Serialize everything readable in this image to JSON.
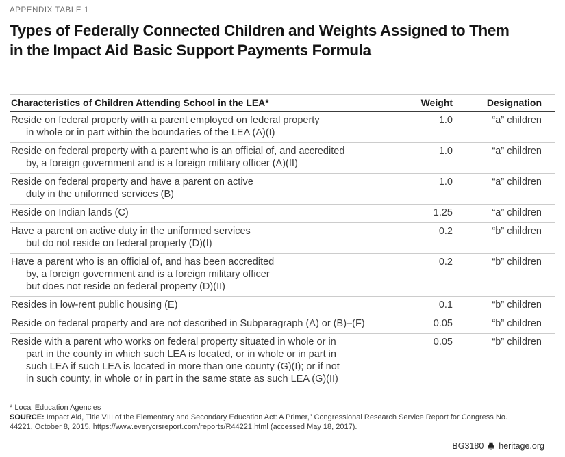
{
  "page": {
    "kicker": "APPENDIX TABLE 1",
    "title_lines": [
      "Types of Federally Connected Children and Weights Assigned to Them",
      "in the Impact Aid Basic Support Payments Formula"
    ]
  },
  "colors": {
    "header_rule_dark": "#3c3c3c",
    "row_rule_light": "#cccccc",
    "body_text": "#3c3c3c",
    "kicker_gray": "#6f6f6f",
    "title_black": "#161616"
  },
  "table": {
    "headers": [
      "Characteristics of Children Attending School in the LEA*",
      "Weight",
      "Designation"
    ],
    "rows": [
      {
        "lines": [
          "Reside on federal property with a parent employed on federal property",
          "in whole or in part within the boundaries of the LEA (A)(I)"
        ],
        "weight": "1.0",
        "designation": "“a” children"
      },
      {
        "lines": [
          "Reside on federal property with a parent who is an official of, and accredited",
          "by, a foreign government and is a foreign military officer (A)(II)"
        ],
        "weight": "1.0",
        "designation": "“a” children"
      },
      {
        "lines": [
          "Reside on federal property and have a parent on active",
          "duty in the uniformed services (B)"
        ],
        "weight": "1.0",
        "designation": "“a” children"
      },
      {
        "lines": [
          "Reside on Indian lands (C)"
        ],
        "weight": "1.25",
        "designation": "“a” children"
      },
      {
        "lines": [
          "Have a parent on active duty in the uniformed services",
          "but do not reside on federal property (D)(I)"
        ],
        "weight": "0.2",
        "designation": "“b” children"
      },
      {
        "lines": [
          "Have a parent who is an official of, and has been accredited",
          "by, a foreign government and is a foreign military officer",
          "but does not reside on federal property (D)(II)"
        ],
        "weight": "0.2",
        "designation": "“b” children"
      },
      {
        "lines": [
          "Resides in low-rent public housing (E)"
        ],
        "weight": "0.1",
        "designation": "“b” children"
      },
      {
        "lines": [
          "Reside on federal property and are not described in Subparagraph (A) or (B)–(F)"
        ],
        "weight": "0.05",
        "designation": "“b” children"
      },
      {
        "lines": [
          "Reside with a parent who works on federal property situated in whole or in",
          "part in the county in which such LEA is located, or in whole or in part in",
          "such LEA if such LEA is located in more than one county (G)(I); or if not",
          "in such county, in whole or in part in the same state as such LEA (G)(II)"
        ],
        "weight": "0.05",
        "designation": "“b” children"
      }
    ]
  },
  "footnotes": {
    "asterisk_note": "* Local Education Agencies",
    "source_label": "SOURCE:",
    "source_lines": [
      "Impact Aid, Title VIII of the Elementary and Secondary Education Act: A Primer,” Congressional Research Service Report for Congress No.",
      "44221, October 8, 2015, https://www.everycrsreport.com/reports/R44221.html (accessed May 18, 2017)."
    ]
  },
  "footer": {
    "doc_id": "BG3180",
    "site": "heritage.org",
    "icon": "liberty-bell-icon"
  }
}
